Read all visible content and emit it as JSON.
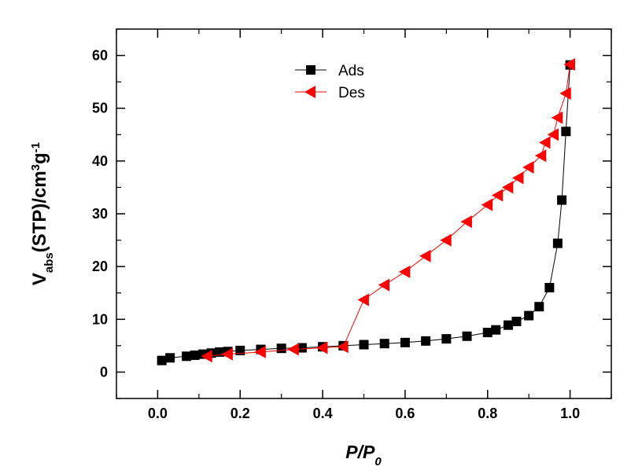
{
  "chart_data": {
    "type": "scatter",
    "xlabel": "P/P0",
    "ylabel": "Vabs(STP)/cm3g-1",
    "xlim": [
      -0.1,
      1.1
    ],
    "ylim": [
      -5,
      65
    ],
    "x_ticks": [
      "0.0",
      "0.2",
      "0.4",
      "0.6",
      "0.8",
      "1.0"
    ],
    "x_tick_values": [
      0.0,
      0.2,
      0.4,
      0.6,
      0.8,
      1.0
    ],
    "y_ticks": [
      "0",
      "10",
      "20",
      "30",
      "40",
      "50",
      "60"
    ],
    "y_tick_values": [
      0,
      10,
      20,
      30,
      40,
      50,
      60
    ],
    "grid": false,
    "legend_position": "top-center",
    "series": [
      {
        "name": "Ads",
        "marker": "square",
        "color": "#000000",
        "x": [
          0.01,
          0.03,
          0.07,
          0.09,
          0.11,
          0.13,
          0.15,
          0.17,
          0.2,
          0.25,
          0.3,
          0.35,
          0.4,
          0.45,
          0.5,
          0.55,
          0.6,
          0.65,
          0.7,
          0.75,
          0.8,
          0.82,
          0.85,
          0.87,
          0.9,
          0.925,
          0.95,
          0.97,
          0.98,
          0.99,
          1.0
        ],
        "y": [
          2.2,
          2.7,
          3.0,
          3.2,
          3.4,
          3.6,
          3.8,
          3.9,
          4.1,
          4.3,
          4.5,
          4.6,
          4.8,
          5.0,
          5.2,
          5.4,
          5.6,
          5.9,
          6.3,
          6.8,
          7.5,
          8.0,
          8.9,
          9.6,
          10.7,
          12.4,
          16.0,
          24.4,
          32.6,
          45.6,
          58.2
        ]
      },
      {
        "name": "Des",
        "marker": "triangle-left",
        "color": "#ff0000",
        "x": [
          1.0,
          0.99,
          0.97,
          0.96,
          0.94,
          0.93,
          0.9,
          0.875,
          0.85,
          0.825,
          0.8,
          0.75,
          0.7,
          0.65,
          0.6,
          0.55,
          0.5,
          0.45,
          0.4,
          0.33,
          0.25,
          0.17,
          0.12
        ],
        "y": [
          58.3,
          52.8,
          48.2,
          45.0,
          43.5,
          41.0,
          38.8,
          36.8,
          35.0,
          33.5,
          31.7,
          28.5,
          25.0,
          22.0,
          19.0,
          16.5,
          13.7,
          4.8,
          4.6,
          4.3,
          3.8,
          3.4,
          3.0
        ]
      }
    ]
  }
}
